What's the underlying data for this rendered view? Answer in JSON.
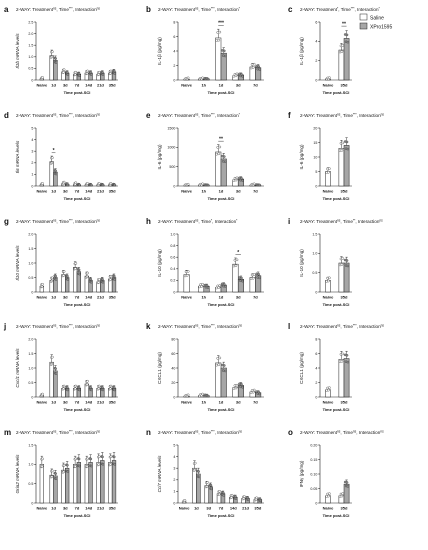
{
  "legend": {
    "saline": "Saline",
    "xpro": "XPro1595",
    "saline_color": "#ffffff",
    "xpro_color": "#a6a6a6"
  },
  "xlabel_text": "Time post-SCI",
  "chart_data": [
    {
      "id": "a",
      "type": "bar",
      "anova": "2-WAY: Treatment",
      "anova_sup": [
        "ns",
        "Time",
        "***",
        "Interaction",
        "ns"
      ],
      "ylabel": "Il1b mRNA levels",
      "ylabel_italic": true,
      "ylim": [
        0,
        2.5
      ],
      "ticks": [
        0,
        0.5,
        1.0,
        1.5,
        2.0,
        2.5
      ],
      "tick_labels": [
        "0",
        "0.5",
        "1.0",
        "1.5",
        "2.0",
        "2.5"
      ],
      "categories": [
        "Naive",
        "1d",
        "3d",
        "7d",
        "14d",
        "21d",
        "35d"
      ],
      "saline": [
        0.05,
        1.05,
        0.35,
        0.25,
        0.3,
        0.25,
        0.3
      ],
      "xpro": [
        null,
        0.85,
        0.3,
        0.25,
        0.3,
        0.3,
        0.35
      ],
      "sig": []
    },
    {
      "id": "b",
      "type": "bar",
      "anova": "2-WAY: Treatment",
      "anova_sup": [
        "ns",
        "Time",
        "***",
        "Interaction",
        "*"
      ],
      "ylabel": "IL-1β (pg/mg)",
      "ylabel_italic": false,
      "ylim": [
        0,
        8
      ],
      "ticks": [
        0,
        2,
        4,
        6,
        8
      ],
      "tick_labels": [
        "0",
        "2",
        "4",
        "6",
        "8"
      ],
      "categories": [
        "Naive",
        "1h",
        "1d",
        "3d",
        "7d"
      ],
      "saline": [
        0.1,
        0.1,
        5.8,
        0.6,
        1.8
      ],
      "xpro": [
        null,
        0.15,
        3.7,
        0.7,
        1.7
      ],
      "sig": [
        {
          "cat": 2,
          "text": "***"
        }
      ]
    },
    {
      "id": "c",
      "type": "bar",
      "anova": "2-WAY: Treatment",
      "anova_sup": [
        "*",
        "Time",
        "***",
        "Interaction",
        "*"
      ],
      "ylabel": "IL-1β (pg/mg)",
      "ylabel_italic": false,
      "ylim": [
        0,
        6
      ],
      "ticks": [
        0,
        2,
        4,
        6
      ],
      "tick_labels": [
        "0",
        "2",
        "4",
        "6"
      ],
      "categories": [
        "Naive",
        "35d"
      ],
      "saline": [
        0.1,
        3.1
      ],
      "xpro": [
        null,
        4.3
      ],
      "sig": [
        {
          "cat": 1,
          "text": "**"
        }
      ]
    },
    {
      "id": "d",
      "type": "bar",
      "anova": "2-WAY: Treatment",
      "anova_sup": [
        "ns",
        "Time",
        "***",
        "Interaction",
        "ns"
      ],
      "ylabel": "Il6 mRNA levels",
      "ylabel_italic": true,
      "ylim": [
        0,
        5
      ],
      "ticks": [
        0,
        1,
        2,
        3,
        4,
        5
      ],
      "tick_labels": [
        "0",
        "1",
        "2",
        "3",
        "4",
        "5"
      ],
      "categories": [
        "Naive",
        "1d",
        "3d",
        "7d",
        "14d",
        "21d",
        "35d"
      ],
      "saline": [
        0.1,
        2.1,
        0.2,
        0.15,
        0.1,
        0.1,
        0.1
      ],
      "xpro": [
        null,
        1.2,
        0.15,
        0.1,
        0.1,
        0.1,
        0.1
      ],
      "sig": [
        {
          "cat": 1,
          "text": "*"
        }
      ]
    },
    {
      "id": "e",
      "type": "bar",
      "anova": "2-WAY: Treatment",
      "anova_sup": [
        "ns",
        "Time",
        "***",
        "Interaction",
        "*"
      ],
      "ylabel": "IL-6 (pg/mg)",
      "ylabel_italic": false,
      "ylim": [
        0,
        1500
      ],
      "ticks": [
        0,
        500,
        1000,
        1500
      ],
      "tick_labels": [
        "0",
        "500",
        "1000",
        "1500"
      ],
      "categories": [
        "Naive",
        "1h",
        "1d",
        "3d",
        "7d"
      ],
      "saline": [
        10,
        20,
        880,
        160,
        20
      ],
      "xpro": [
        null,
        20,
        700,
        180,
        20
      ],
      "sig": [
        {
          "cat": 2,
          "text": "**"
        }
      ]
    },
    {
      "id": "f",
      "type": "bar",
      "anova": "2-WAY: Treatment",
      "anova_sup": [
        "ns",
        "Time",
        "***",
        "Interaction",
        "ns"
      ],
      "ylabel": "IL-6 (pg/mg)",
      "ylabel_italic": false,
      "ylim": [
        0,
        20
      ],
      "ticks": [
        0,
        5,
        10,
        15,
        20
      ],
      "tick_labels": [
        "0",
        "5",
        "10",
        "15",
        "20"
      ],
      "categories": [
        "Naive",
        "35d"
      ],
      "saline": [
        5,
        13
      ],
      "xpro": [
        null,
        14
      ],
      "sig": []
    },
    {
      "id": "g",
      "type": "bar",
      "anova": "2-WAY: Treatment",
      "anova_sup": [
        "ns",
        "Time",
        "***",
        "Interaction",
        "ns"
      ],
      "ylabel": "Il10 mRNA levels",
      "ylabel_italic": true,
      "ylim": [
        0,
        2.0
      ],
      "ticks": [
        0,
        0.5,
        1.0,
        1.5,
        2.0
      ],
      "tick_labels": [
        "0",
        "0.5",
        "1.0",
        "1.5",
        "2.0"
      ],
      "categories": [
        "Naive",
        "1d",
        "3d",
        "7d",
        "14d",
        "21d",
        "35d"
      ],
      "saline": [
        0.2,
        0.4,
        0.6,
        0.85,
        0.55,
        0.35,
        0.45
      ],
      "xpro": [
        null,
        0.5,
        0.5,
        0.7,
        0.4,
        0.4,
        0.5
      ],
      "sig": []
    },
    {
      "id": "h",
      "type": "bar",
      "anova": "2-WAY: Treatment",
      "anova_sup": [
        "ns",
        "Time",
        "*",
        "Interaction",
        "*"
      ],
      "ylabel": "IL-10 (pg/mg)",
      "ylabel_italic": false,
      "ylim": [
        0,
        1.0
      ],
      "ticks": [
        0,
        0.2,
        0.4,
        0.6,
        0.8,
        1.0
      ],
      "tick_labels": [
        "0",
        "0.2",
        "0.4",
        "0.6",
        "0.8",
        "1.0"
      ],
      "categories": [
        "Naive",
        "1h",
        "1d",
        "3d",
        "7d"
      ],
      "saline": [
        0.3,
        0.1,
        0.08,
        0.48,
        0.25
      ],
      "xpro": [
        null,
        0.1,
        0.12,
        0.22,
        0.28
      ],
      "sig": [
        {
          "cat": 3,
          "text": "*"
        }
      ]
    },
    {
      "id": "i",
      "type": "bar",
      "anova": "2-WAY: Treatment",
      "anova_sup": [
        "ns",
        "Time",
        "**",
        "Interaction",
        "ns"
      ],
      "ylabel": "IL-10 (pg/mg)",
      "ylabel_italic": false,
      "ylim": [
        0,
        1.5
      ],
      "ticks": [
        0,
        0.5,
        1.0,
        1.5
      ],
      "tick_labels": [
        "0",
        "0.5",
        "1.0",
        "1.5"
      ],
      "categories": [
        "Naive",
        "35d"
      ],
      "saline": [
        0.3,
        0.75
      ],
      "xpro": [
        null,
        0.75
      ],
      "sig": []
    },
    {
      "id": "j",
      "type": "bar",
      "anova": "2-WAY: Treatment",
      "anova_sup": [
        "ns",
        "Time",
        "***",
        "Interaction",
        "ns"
      ],
      "ylabel": "Cxcl1 mRNA levels",
      "ylabel_italic": true,
      "ylim": [
        0,
        2.0
      ],
      "ticks": [
        0,
        0.5,
        1.0,
        1.5,
        2.0
      ],
      "tick_labels": [
        "0",
        "0.5",
        "1.0",
        "1.5",
        "2.0"
      ],
      "categories": [
        "Naive",
        "1d",
        "3d",
        "7d",
        "14d",
        "21d",
        "35d"
      ],
      "saline": [
        0.05,
        1.2,
        0.3,
        0.3,
        0.45,
        0.3,
        0.3
      ],
      "xpro": [
        null,
        0.9,
        0.3,
        0.3,
        0.3,
        0.3,
        0.3
      ],
      "sig": []
    },
    {
      "id": "k",
      "type": "bar",
      "anova": "2-WAY: Treatment",
      "anova_sup": [
        "ns",
        "Time",
        "***",
        "Interaction",
        "ns"
      ],
      "ylabel": "CXCL1 (pg/mg)",
      "ylabel_italic": false,
      "ylim": [
        0,
        80
      ],
      "ticks": [
        0,
        20,
        40,
        60,
        80
      ],
      "tick_labels": [
        "0",
        "20",
        "40",
        "60",
        "80"
      ],
      "categories": [
        "Naive",
        "1h",
        "1d",
        "3d",
        "7d"
      ],
      "saline": [
        1,
        2,
        47,
        13,
        7
      ],
      "xpro": [
        null,
        2,
        40,
        16,
        6
      ],
      "sig": []
    },
    {
      "id": "l",
      "type": "bar",
      "anova": "2-WAY: Treatment",
      "anova_sup": [
        "ns",
        "Time",
        "***",
        "Interaction",
        "ns"
      ],
      "ylabel": "CXCL1 (pg/mg)",
      "ylabel_italic": false,
      "ylim": [
        0,
        8
      ],
      "ticks": [
        0,
        2,
        4,
        6,
        8
      ],
      "tick_labels": [
        "0",
        "2",
        "4",
        "6",
        "8"
      ],
      "categories": [
        "Naive",
        "35d"
      ],
      "saline": [
        1.0,
        5.2
      ],
      "xpro": [
        null,
        5.3
      ],
      "sig": []
    },
    {
      "id": "m",
      "type": "bar",
      "anova": "2-WAY: Treatment",
      "anova_sup": [
        "ns",
        "Time",
        "***",
        "Interaction",
        "ns"
      ],
      "ylabel": "Gria2 mRNA levels",
      "ylabel_italic": true,
      "ylim": [
        0,
        1.5
      ],
      "ticks": [
        0,
        0.5,
        1.0,
        1.5
      ],
      "tick_labels": [
        "0",
        "0.5",
        "1.0",
        "1.5"
      ],
      "categories": [
        "Naive",
        "1d",
        "3d",
        "7d",
        "14d",
        "21d",
        "35d"
      ],
      "saline": [
        1.0,
        0.72,
        0.85,
        1.0,
        1.0,
        1.05,
        1.05
      ],
      "xpro": [
        null,
        0.7,
        0.9,
        1.05,
        1.05,
        1.1,
        1.1
      ],
      "sig": []
    },
    {
      "id": "n",
      "type": "bar",
      "anova": "2-WAY: Treatment",
      "anova_sup": [
        "ns",
        "Time",
        "***",
        "Interaction",
        "ns"
      ],
      "ylabel": "Ccl7 mRNA levels",
      "ylabel_italic": true,
      "ylim": [
        0,
        5
      ],
      "ticks": [
        0,
        1,
        2,
        3,
        4,
        5
      ],
      "tick_labels": [
        "0",
        "1",
        "2",
        "3",
        "4",
        "5"
      ],
      "categories": [
        "Naive",
        "1d",
        "3d",
        "7d",
        "14d",
        "21d",
        "35d"
      ],
      "saline": [
        0.1,
        3.0,
        1.5,
        0.8,
        0.5,
        0.4,
        0.3
      ],
      "xpro": [
        null,
        2.5,
        1.4,
        0.8,
        0.5,
        0.4,
        0.3
      ],
      "sig": []
    },
    {
      "id": "o",
      "type": "bar",
      "anova": "2-WAY: Treatment",
      "anova_sup": [
        "ns",
        "Time",
        "ns",
        "Interaction",
        "ns"
      ],
      "ylabel": "IFNγ (pg/mg)",
      "ylabel_italic": false,
      "ylim": [
        0,
        0.2
      ],
      "ticks": [
        0,
        0.05,
        0.1,
        0.15,
        0.2
      ],
      "tick_labels": [
        "0",
        "0.05",
        "0.10",
        "0.15",
        "0.20"
      ],
      "categories": [
        "Naive",
        "35d"
      ],
      "saline": [
        0.025,
        0.025
      ],
      "xpro": [
        null,
        0.065
      ],
      "sig": []
    }
  ]
}
